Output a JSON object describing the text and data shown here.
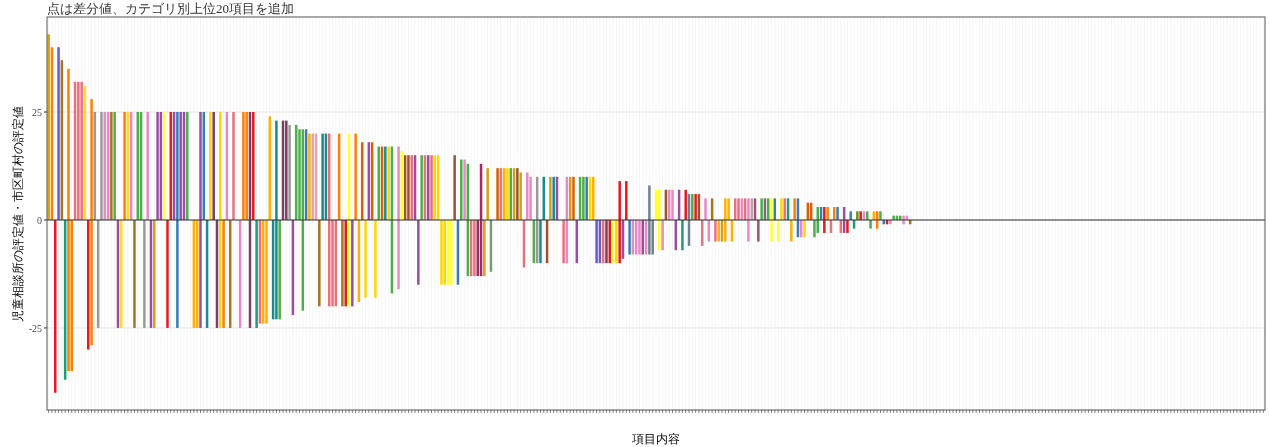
{
  "chart_data": {
    "type": "bar",
    "subtitle": "点は差分値、カテゴリ別上位20項目を追加",
    "xlabel": "項目内容",
    "ylabel": "児童相談所の評定値・市区町村の評定値",
    "ylim": [
      -44,
      47
    ],
    "yticks": [
      -25,
      0,
      25
    ],
    "grid": true,
    "ref_lines": [
      {
        "axis": "y",
        "value": 0,
        "color": "#333333"
      }
    ],
    "categories": [
      null,
      null,
      null,
      null,
      null,
      null,
      null,
      null,
      null,
      null,
      null,
      null,
      null,
      null,
      null,
      null,
      null,
      null,
      null,
      null,
      null,
      null,
      null,
      null,
      null,
      null,
      null,
      null,
      null,
      null,
      null,
      null,
      null,
      null,
      null,
      null,
      null,
      null,
      null,
      null,
      null,
      null,
      null,
      null,
      null,
      null,
      null,
      null,
      null,
      null,
      null,
      null,
      null,
      null,
      null,
      null,
      null,
      null,
      null,
      null,
      null,
      null,
      null,
      null,
      null,
      null,
      null,
      null,
      null,
      null,
      null,
      null,
      null,
      null,
      null,
      null,
      null,
      null,
      null,
      null,
      null,
      null,
      null,
      null,
      null,
      null,
      null,
      null,
      null,
      null,
      null,
      null,
      null,
      null,
      null,
      null,
      null,
      null,
      null,
      null,
      null,
      null,
      null,
      null,
      null,
      null,
      null,
      null,
      null,
      null,
      null,
      null,
      null,
      null,
      null,
      null,
      null,
      null,
      null,
      null,
      null,
      null,
      null,
      null,
      null,
      null,
      null,
      null,
      null,
      null,
      null,
      null,
      null,
      null,
      null,
      null,
      null,
      null,
      null,
      null,
      null,
      null,
      null,
      null,
      null,
      null,
      null,
      null,
      null,
      null,
      null,
      null,
      null,
      null,
      null,
      null,
      null,
      null,
      null,
      null,
      null,
      null,
      null,
      null,
      null,
      null,
      null,
      null,
      null,
      null,
      null,
      null,
      null,
      null,
      null,
      null,
      null,
      null,
      null,
      null,
      null,
      null,
      null,
      null,
      null,
      null,
      null,
      null,
      null,
      null,
      null,
      null,
      null,
      null,
      null,
      null,
      null,
      null,
      null,
      null,
      null,
      null,
      null,
      null,
      null,
      null,
      null,
      null,
      null,
      null,
      null,
      null,
      null,
      null,
      null,
      null,
      null,
      null,
      null,
      null,
      null,
      null,
      null,
      null,
      null,
      null,
      null,
      null,
      null,
      null,
      null,
      null,
      null,
      null,
      null,
      null,
      null,
      null,
      null,
      null,
      null,
      null,
      null,
      null,
      null,
      null,
      null,
      null,
      null,
      null,
      null,
      null,
      null,
      null,
      null,
      null,
      null,
      null,
      null,
      null,
      null,
      null,
      null,
      null,
      null,
      null,
      null,
      null,
      null,
      null,
      null,
      null,
      null,
      null,
      null,
      null,
      null,
      null,
      null,
      null,
      null,
      null,
      null,
      null,
      null,
      null,
      null,
      null,
      null,
      null,
      null,
      null,
      null,
      null,
      null,
      null,
      null,
      null,
      null,
      null,
      null,
      null,
      null,
      null,
      null,
      null,
      null,
      null,
      null,
      null,
      null,
      null,
      null,
      null,
      null,
      null,
      null,
      null,
      null,
      null,
      null,
      null,
      null,
      null,
      null,
      null,
      null,
      null,
      null,
      null,
      null,
      null,
      null,
      null,
      null,
      null,
      null,
      null,
      null,
      null,
      null,
      null,
      null,
      null,
      null,
      null,
      null,
      null,
      null,
      null,
      null,
      null,
      null,
      null,
      null,
      null,
      null,
      null,
      null,
      null,
      null,
      null,
      null,
      null,
      null,
      null,
      null,
      null,
      null
    ],
    "series": [
      {
        "colors": [
          "#d4a017",
          "#ff7f00",
          null,
          "#6a5acd",
          "#a6761d",
          null,
          "#ff7f00",
          null,
          "#e7717d",
          "#e7717d",
          "#e7717d",
          "#ffd92f",
          null,
          "#ff7f00",
          "#999999",
          null,
          "#999999",
          "#e78ac3",
          "#e78ac3",
          "#a6761d",
          "#4daf4a",
          null,
          null,
          "#ff7f00",
          "#ffd92f",
          "#e78ac3",
          null,
          "#4daf4a",
          "#4daf4a",
          null,
          "#e78ac3",
          null,
          null,
          "#984ea3",
          "#984ea3",
          "#ffff33",
          null,
          "#e41a1c",
          "#984ea3",
          "#377eb8",
          "#984ea3",
          "#984ea3",
          "#4daf4a",
          null,
          null,
          null,
          "#984ea3",
          "#377eb8",
          null,
          "#ffd700",
          "#7b3f61",
          null,
          "#ffd700",
          null,
          "#e78ac3",
          null,
          "#e7717d",
          null,
          null,
          "#ff7f00",
          "#ff7f00",
          "#7b3f61",
          "#e41a1c",
          null,
          null,
          null,
          null,
          "#ffb000",
          null,
          "#1b8a8a",
          null,
          "#7b3f61",
          "#7b3f61",
          "#999999",
          null,
          "#4daf4a",
          "#4daf4a",
          "#4daf4a",
          "#377eb8",
          "#ffb000",
          "#e7a0b0",
          "#e7a0b0",
          null,
          "#1b8a8a",
          "#1b8a8a",
          "#e7717d",
          null,
          null,
          "#ff7f00",
          null,
          null,
          "#ffff33",
          null,
          "#ff7f00",
          null,
          "#d95f02",
          null,
          "#984ea3",
          "#d95f02",
          null,
          "#4daf4a",
          "#d95f02",
          "#1b8a8a",
          "#ffd700",
          "#4daf4a",
          null,
          "#e78ac3",
          "#ffff33",
          "#a0522d",
          "#a0522d",
          "#e7717d",
          "#984ea3",
          null,
          "#4daf4a",
          "#e7717d",
          "#984ea3",
          "#e7717d",
          "#ffd700",
          "#ffd700",
          null,
          null,
          null,
          null,
          "#a0522d",
          null,
          "#4daf4a",
          "#e78ac3",
          "#4daf4a",
          null,
          null,
          null,
          "#9b2f5f",
          null,
          "#d4a017",
          null,
          null,
          "#d95f02",
          "#e7717d",
          "#ffb000",
          "#ffd700",
          "#4daf4a",
          "#d4a017",
          "#a0522d",
          "#d4a017",
          null,
          "#e78ac3",
          "#e78ac3",
          null,
          "#999999",
          null,
          "#1b8a8a",
          null,
          "#d4a017",
          "#1b8a8a",
          "#984ea3",
          null,
          null,
          "#e78ac3",
          "#d4a017",
          "#d95f02",
          null,
          "#4daf4a",
          "#4daf4a",
          "#377eb8",
          "#ffd700",
          "#ffb000",
          null,
          null,
          null,
          null,
          null,
          null,
          null,
          "#e41a1c",
          null,
          "#e41a1c",
          null,
          null,
          null,
          null,
          null,
          null,
          "#708090",
          null,
          "#ffff33",
          "#ffff33",
          null,
          "#a0522d",
          "#e78ac3",
          "#e78ac3",
          null,
          "#984ea3",
          null,
          "#e41a1c",
          "#708090",
          "#4daf4a",
          "#e41a1c",
          "#a0522d",
          null,
          "#e78ac3",
          null,
          "#a6761d",
          null,
          null,
          null,
          "#ffb000",
          "#ffb000",
          null,
          "#e7717d",
          "#e7717d",
          "#e78ac3",
          "#e7717d",
          "#e78ac3",
          "#c0a0b0",
          "#a0526d",
          null,
          "#4daf4a",
          "#7b6b7b",
          "#4daf4a",
          "#ffff33",
          "#377eb8",
          null,
          "#ffd700",
          "#e7717d",
          "#1b9e77",
          null,
          "#ff7f00",
          "#377eb8",
          null,
          null,
          "#d95f02",
          "#d95f02",
          null,
          "#4daf4a",
          "#377eb8",
          "#e41a1c",
          "#ff7f00",
          null,
          "#ff7f00",
          "#377eb8",
          null,
          "#984ea3",
          null,
          "#377eb8",
          null,
          "#6b8e23",
          "#e41a1c",
          "#e78ac3",
          "#4daf4a",
          null,
          "#ffb000",
          "#ff7f00",
          "#4daf4a",
          null,
          null,
          null,
          "#4daf4a",
          "#4daf4a",
          "#4daf4a",
          "#e78ac3",
          "#e78ac3",
          null,
          null,
          null,
          null,
          null,
          null,
          null,
          null,
          null,
          null,
          null,
          null,
          null,
          null,
          null,
          null,
          null,
          null,
          null,
          null,
          null,
          null,
          null,
          null,
          null,
          null,
          null,
          null,
          null,
          null,
          null,
          null,
          null,
          null,
          null,
          null,
          null,
          null,
          null,
          null,
          null,
          null,
          null,
          null,
          null,
          null,
          null,
          null,
          null,
          null,
          null,
          null,
          null,
          null,
          null,
          null,
          null,
          null,
          null,
          null,
          null,
          null,
          null,
          null,
          null,
          null,
          null,
          null,
          null,
          null,
          null,
          null,
          null,
          null,
          null,
          null,
          null,
          null,
          null,
          null,
          null,
          null,
          null,
          null,
          null,
          null,
          null,
          null,
          null,
          null,
          null,
          null,
          null,
          null,
          null,
          null,
          null,
          null,
          null,
          null,
          null,
          null,
          null,
          null,
          null,
          null,
          null,
          null
        ],
        "values": [
          43,
          40,
          null,
          40,
          37,
          null,
          35,
          null,
          32,
          32,
          32,
          31,
          null,
          28,
          25,
          null,
          25,
          25,
          25,
          25,
          25,
          null,
          null,
          25,
          25,
          25,
          null,
          25,
          25,
          null,
          25,
          null,
          null,
          25,
          25,
          25,
          null,
          25,
          25,
          25,
          25,
          25,
          25,
          null,
          null,
          null,
          25,
          25,
          null,
          25,
          25,
          null,
          25,
          null,
          25,
          null,
          25,
          null,
          null,
          25,
          25,
          25,
          25,
          null,
          null,
          null,
          null,
          24,
          null,
          23,
          null,
          23,
          23,
          22,
          null,
          22,
          21,
          21,
          21,
          20,
          20,
          20,
          null,
          20,
          20,
          20,
          null,
          null,
          20,
          null,
          null,
          20,
          null,
          20,
          null,
          18,
          null,
          18,
          18,
          null,
          17,
          17,
          17,
          17,
          17,
          null,
          17,
          16,
          15,
          15,
          15,
          15,
          null,
          15,
          15,
          15,
          15,
          15,
          15,
          null,
          null,
          null,
          null,
          15,
          null,
          14,
          14,
          13,
          null,
          null,
          null,
          13,
          null,
          12,
          null,
          null,
          12,
          12,
          12,
          12,
          12,
          12,
          12,
          11,
          null,
          11,
          10,
          null,
          10,
          null,
          10,
          null,
          10,
          10,
          10,
          null,
          null,
          10,
          10,
          10,
          null,
          10,
          10,
          10,
          10,
          10,
          null,
          null,
          null,
          null,
          null,
          null,
          null,
          9,
          null,
          9,
          null,
          null,
          null,
          null,
          null,
          null,
          8,
          null,
          7,
          7,
          null,
          7,
          7,
          7,
          null,
          7,
          null,
          7,
          6,
          6,
          6,
          6,
          null,
          5,
          null,
          5,
          null,
          null,
          null,
          5,
          5,
          null,
          5,
          5,
          5,
          5,
          5,
          5,
          5,
          null,
          5,
          5,
          5,
          5,
          5,
          null,
          5,
          5,
          5,
          null,
          5,
          5,
          null,
          null,
          4,
          4,
          null,
          3,
          3,
          3,
          3,
          null,
          3,
          3,
          null,
          3,
          null,
          2,
          null,
          2,
          2,
          2,
          2,
          null,
          2,
          2,
          2,
          null,
          null,
          null,
          1,
          1,
          1,
          1,
          1,
          null,
          null,
          null,
          null,
          null,
          null,
          null,
          null,
          null,
          null,
          null,
          null,
          null,
          null,
          null,
          null,
          null,
          null,
          null,
          null,
          null,
          null,
          null,
          null,
          null,
          null,
          null,
          null,
          null,
          null,
          null,
          null,
          null,
          null,
          null,
          null,
          null,
          null,
          null,
          null,
          null,
          null,
          null,
          null,
          null,
          null,
          null,
          null,
          null,
          null,
          null,
          null,
          null,
          null,
          null,
          null,
          null,
          null,
          null,
          null,
          null,
          null,
          null,
          null,
          null,
          null,
          null,
          null,
          null,
          null,
          null,
          null,
          null,
          null,
          null,
          null,
          null,
          null,
          null,
          null,
          null,
          null,
          null,
          null,
          null,
          null,
          null,
          null,
          null,
          null,
          null,
          null,
          null,
          null,
          null,
          null,
          null,
          null,
          null,
          null,
          null,
          null,
          null,
          null,
          null,
          null,
          null,
          null
        ]
      },
      {
        "colors": [
          null,
          null,
          "#e41a1c",
          null,
          null,
          "#1b9e77",
          "#ff7f00",
          "#ff7f00",
          null,
          null,
          null,
          null,
          "#e41a1c",
          "#ff7f00",
          null,
          "#999999",
          null,
          null,
          null,
          null,
          null,
          "#984ea3",
          "#ffd92f",
          null,
          null,
          null,
          "#a6761d",
          null,
          null,
          "#999999",
          null,
          "#984ea3",
          "#d4a017",
          null,
          null,
          null,
          "#e41a1c",
          null,
          null,
          "#377eb8",
          null,
          null,
          null,
          null,
          "#ffb000",
          "#ffb000",
          "#984ea3",
          null,
          "#1b8a8a",
          null,
          null,
          "#7b3f61",
          "#ffd700",
          "#ff7f00",
          null,
          "#a6761d",
          null,
          null,
          "#e78ac3",
          null,
          null,
          "#7b3f61",
          null,
          "#1b9e77",
          "#e7717d",
          "#ffb000",
          "#ffb000",
          null,
          "#1b8a8a",
          "#1b8a8a",
          "#4daf4a",
          null,
          null,
          null,
          "#984ea3",
          null,
          null,
          "#4daf4a",
          null,
          null,
          null,
          null,
          "#a6761d",
          null,
          null,
          "#e7717d",
          "#e7717d",
          "#e7717d",
          null,
          "#a6761d",
          "#e41a1c",
          "#ffff33",
          "#984ea3",
          null,
          "#ffb000",
          null,
          "#ffd700",
          null,
          null,
          "#ffd700",
          null,
          null,
          null,
          null,
          "#4daf4a",
          null,
          "#e78ac3",
          null,
          null,
          null,
          null,
          null,
          "#984ea3",
          null,
          null,
          null,
          null,
          null,
          null,
          "#ffd700",
          "#ffd700",
          "#ffff33",
          "#ffff33",
          null,
          "#377eb8",
          null,
          null,
          "#4daf4a",
          "#e7717d",
          "#e7717d",
          "#9b2f5f",
          "#9b2f5f",
          "#d4a017",
          null,
          "#7a9a7a",
          null,
          null,
          null,
          null,
          null,
          null,
          null,
          null,
          null,
          "#e7717d",
          null,
          null,
          "#4daf4a",
          "#999999",
          "#1b8a8a",
          null,
          "#a0522d",
          null,
          null,
          null,
          null,
          "#e7717d",
          "#e78ac3",
          null,
          null,
          "#984ea3",
          null,
          null,
          null,
          null,
          null,
          "#6a5acd",
          "#6a5acd",
          "#e7717d",
          "#7b3f61",
          "#e41a1c",
          "#ffff33",
          "#ffd700",
          "#e41a1c",
          "#984ea3",
          null,
          "#377eb8",
          "#e78ac3",
          "#e78ac3",
          "#e78ac3",
          "#984ea3",
          "#e78ac3",
          "#708090",
          "#708090",
          null,
          "#ffff33",
          "#e78ac3",
          null,
          null,
          null,
          "#984ea3",
          null,
          "#1b9e77",
          null,
          "#708090",
          null,
          null,
          null,
          "#e7717d",
          null,
          "#e78ac3",
          null,
          "#e7717d",
          "#ffb000",
          "#d4a017",
          "#ffb000",
          null,
          "#ffb000",
          null,
          null,
          null,
          null,
          "#e78ac3",
          null,
          null,
          "#a0526d",
          null,
          null,
          null,
          "#ffff33",
          null,
          "#ffff33",
          null,
          null,
          null,
          "#ffb000",
          null,
          "#377eb8",
          "#e78ac3",
          "#ffd700",
          null,
          null,
          "#4daf4a",
          "#4daf4a",
          null,
          "#e41a1c",
          null,
          "#e7717d",
          null,
          null,
          "#e7717d",
          "#984ea3",
          "#e41a1c",
          null,
          "#1b9e77",
          null,
          null,
          null,
          null,
          "#4daf4a",
          null,
          "#ff7f00",
          null,
          "#377eb8",
          "#e41a1c",
          "#e78ac3",
          null,
          null,
          null,
          "#e78ac3",
          null,
          "#a6761d",
          null,
          null,
          null,
          null,
          null,
          null,
          null,
          null,
          null,
          null,
          null,
          null,
          null,
          null,
          null,
          null,
          null,
          null,
          null,
          null,
          null,
          null,
          null,
          null,
          null,
          null,
          null,
          null,
          null,
          null,
          null,
          null,
          null,
          null,
          null,
          null,
          null,
          null,
          null,
          null,
          null,
          null,
          null,
          null,
          null,
          null,
          null,
          null,
          null,
          null,
          null,
          null,
          null,
          null,
          null,
          null,
          null,
          null,
          null,
          null,
          null,
          null,
          null,
          null,
          null,
          null,
          null,
          null,
          null,
          null,
          null,
          null,
          null,
          null,
          null,
          null,
          null,
          null,
          null,
          null,
          null,
          null,
          null,
          null,
          null,
          null,
          null,
          null,
          null,
          null,
          null,
          null,
          null,
          null,
          null,
          null,
          null,
          null,
          null,
          null,
          null,
          null,
          null,
          null,
          null,
          null,
          null
        ],
        "values": [
          null,
          null,
          -40,
          null,
          null,
          -37,
          -35,
          -35,
          null,
          null,
          null,
          null,
          -30,
          -29,
          null,
          -25,
          null,
          null,
          null,
          null,
          null,
          -25,
          -25,
          null,
          null,
          null,
          -25,
          null,
          null,
          -25,
          null,
          -25,
          -25,
          null,
          null,
          null,
          -25,
          null,
          null,
          -25,
          null,
          null,
          null,
          null,
          -25,
          -25,
          -25,
          null,
          -25,
          null,
          null,
          -25,
          -25,
          -25,
          null,
          -25,
          null,
          null,
          -25,
          null,
          null,
          -25,
          null,
          -25,
          -24,
          -24,
          -24,
          null,
          -23,
          -23,
          -23,
          null,
          null,
          null,
          -22,
          null,
          null,
          -21,
          null,
          null,
          null,
          null,
          -20,
          null,
          null,
          -20,
          -20,
          -20,
          null,
          -20,
          -20,
          -20,
          -20,
          null,
          -19,
          null,
          -18,
          null,
          null,
          -18,
          null,
          null,
          null,
          null,
          -17,
          null,
          -16,
          null,
          null,
          null,
          null,
          null,
          -15,
          null,
          null,
          null,
          null,
          null,
          null,
          -15,
          -15,
          -15,
          -15,
          null,
          -15,
          null,
          null,
          -13,
          -13,
          -13,
          -13,
          -13,
          -13,
          null,
          -12,
          null,
          null,
          null,
          null,
          null,
          null,
          null,
          null,
          null,
          -11,
          null,
          null,
          -10,
          -10,
          -10,
          null,
          -10,
          null,
          null,
          null,
          null,
          -10,
          -10,
          null,
          null,
          -10,
          null,
          null,
          null,
          null,
          null,
          -10,
          -10,
          -10,
          -10,
          -10,
          -10,
          -10,
          -10,
          -9,
          null,
          -8,
          -8,
          -8,
          -8,
          -8,
          -8,
          -8,
          -8,
          null,
          -7,
          -7,
          null,
          null,
          null,
          -7,
          null,
          -7,
          null,
          -6,
          null,
          null,
          null,
          -6,
          null,
          -5,
          null,
          -5,
          -5,
          -5,
          -5,
          null,
          -5,
          null,
          null,
          null,
          null,
          -5,
          null,
          null,
          -5,
          null,
          null,
          null,
          -5,
          null,
          -5,
          null,
          null,
          null,
          -5,
          null,
          -4,
          -4,
          -4,
          null,
          null,
          -4,
          -3,
          null,
          -3,
          null,
          -3,
          null,
          null,
          -3,
          -3,
          -3,
          null,
          -2,
          null,
          null,
          null,
          null,
          -2,
          null,
          -2,
          null,
          -1,
          -1,
          -1,
          null,
          null,
          null,
          -1,
          null,
          -1,
          null,
          null,
          null,
          null,
          null,
          null,
          null,
          null,
          null,
          null,
          null,
          null,
          null,
          null,
          null,
          null,
          null,
          null,
          null,
          null,
          null,
          null,
          null,
          null,
          null,
          null,
          null,
          null,
          null,
          null,
          null,
          null,
          null,
          null,
          null,
          null,
          null,
          null,
          null,
          null,
          null,
          null,
          null,
          null,
          null,
          null,
          null,
          null,
          null,
          null,
          null,
          null,
          null,
          null,
          null,
          null,
          null,
          null,
          null,
          null,
          null,
          null,
          null,
          null,
          null,
          null,
          null,
          null,
          null,
          null,
          null,
          null,
          null,
          null,
          null,
          null,
          null,
          null,
          null,
          null,
          null,
          null,
          null,
          null,
          null,
          null,
          null,
          null,
          null,
          null,
          null,
          null,
          null,
          null,
          null,
          null,
          null,
          null,
          null,
          null,
          null,
          null,
          null,
          null,
          null,
          null,
          null
        ]
      }
    ]
  }
}
